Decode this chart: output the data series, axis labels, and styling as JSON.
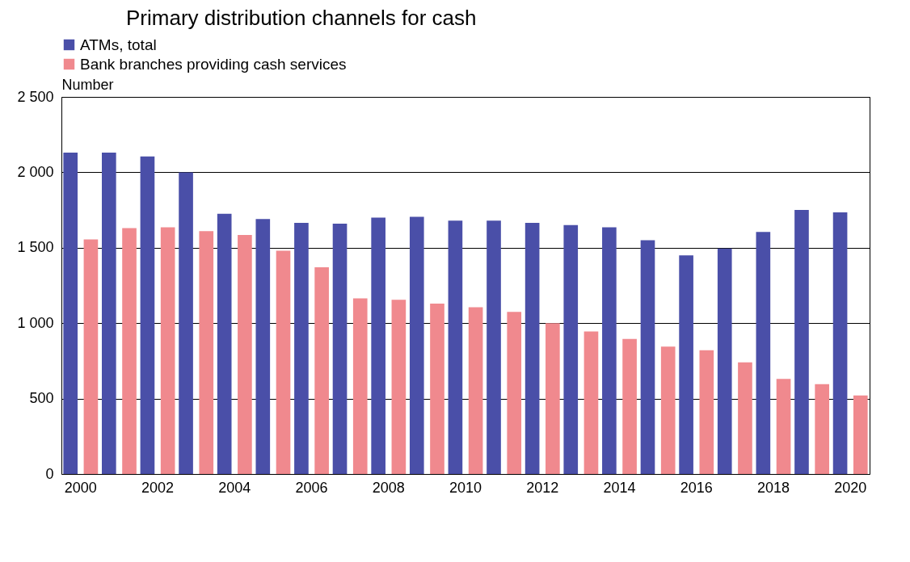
{
  "chart_data": {
    "type": "bar",
    "title": "Primary distribution channels for cash",
    "ylabel": "Number",
    "categories": [
      "2000",
      null,
      "2002",
      null,
      "2004",
      null,
      "2006",
      null,
      "2008",
      null,
      "2010",
      null,
      "2012",
      null,
      "2014",
      null,
      "2016",
      null,
      "2018",
      null,
      "2020"
    ],
    "series": [
      {
        "name": "ATMs, total",
        "color": "#4a4fa8",
        "values": [
          2130,
          2130,
          2105,
          2000,
          1725,
          1690,
          1665,
          1660,
          1700,
          1705,
          1680,
          1680,
          1665,
          1650,
          1635,
          1550,
          1450,
          1495,
          1605,
          1750,
          1735
        ]
      },
      {
        "name": "Bank branches providing cash services",
        "color": "#f0898e",
        "values": [
          1555,
          1630,
          1635,
          1610,
          1585,
          1480,
          1370,
          1165,
          1155,
          1130,
          1105,
          1075,
          1000,
          945,
          895,
          845,
          820,
          740,
          630,
          595,
          520
        ]
      }
    ],
    "ylim": [
      0,
      2500
    ],
    "yticks": [
      0,
      500,
      {
        "value": 1000,
        "label": "1 000"
      },
      {
        "value": 1500,
        "label": "1 500"
      },
      {
        "value": 2000,
        "label": "2 000"
      },
      {
        "value": 2500,
        "label": "2 500"
      }
    ],
    "grid": "y",
    "legend": "top"
  }
}
